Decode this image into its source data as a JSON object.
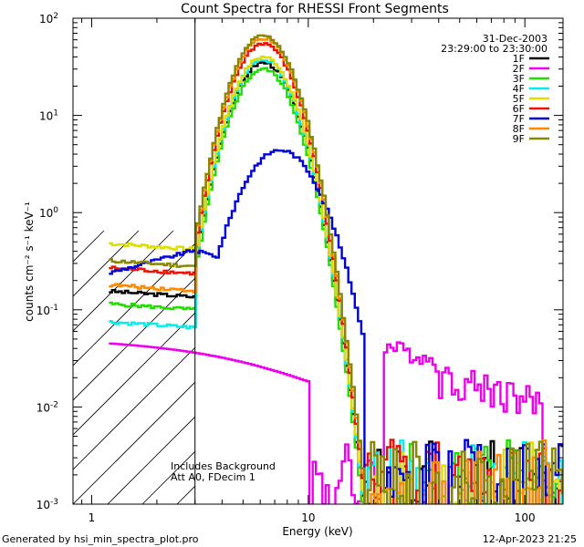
{
  "chart_data": {
    "type": "line",
    "title": "Count Spectra for RHESSI Front Segments",
    "xlabel": "Energy (keV)",
    "ylabel": "counts cm⁻² s⁻¹ keV⁻¹",
    "xscale": "log",
    "yscale": "log",
    "xlim": [
      0.82,
      150
    ],
    "ylim": [
      0.001,
      100
    ],
    "x_ticks": [
      "1",
      "10",
      "100"
    ],
    "y_ticks": [
      {
        "base": "10",
        "exp": "2"
      },
      {
        "base": "10",
        "exp": "1"
      },
      {
        "base": "10",
        "exp": "0"
      },
      {
        "base": "10",
        "exp": "-1"
      },
      {
        "base": "10",
        "exp": "-2"
      },
      {
        "base": "10",
        "exp": "-3"
      }
    ],
    "date": "31-Dec-2003",
    "time_range": "23:29:00 to 23:30:00",
    "annotation_line1": "Includes Background",
    "annotation_line2": "Att A0, FDecim 1",
    "threshold_energy_kev": 3,
    "legend_position": "top-right",
    "series": [
      {
        "name": "1F",
        "color": "#000000",
        "low": 0.155,
        "peak": 35
      },
      {
        "name": "2F",
        "color": "#ee00ee",
        "flat": true
      },
      {
        "name": "3F",
        "color": "#22dd00",
        "low": 0.115,
        "peak": 30
      },
      {
        "name": "4F",
        "color": "#00eeee",
        "low": 0.075,
        "peak": 38
      },
      {
        "name": "5F",
        "color": "#dddd00",
        "low": 0.48,
        "peak": 40
      },
      {
        "name": "6F",
        "color": "#ee1100",
        "low": 0.27,
        "peak": 55
      },
      {
        "name": "7F",
        "color": "#0000dd",
        "low": 0.24,
        "peak": 4.4,
        "broad": true
      },
      {
        "name": "8F",
        "color": "#ff8800",
        "low": 0.18,
        "peak": 62
      },
      {
        "name": "9F",
        "color": "#888800",
        "low": 0.32,
        "peak": 66
      }
    ]
  },
  "footer": {
    "generator": "Generated by hsi_min_spectra_plot.pro",
    "timestamp": "12-Apr-2023 21:25"
  }
}
